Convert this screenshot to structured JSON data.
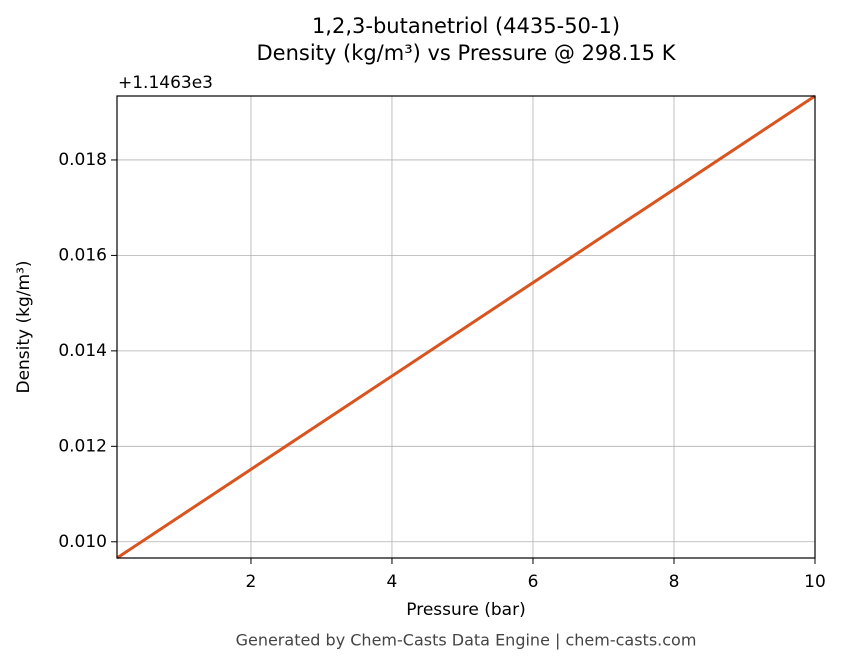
{
  "chart_data": {
    "type": "line",
    "title": "1,2,3-butanetriol (4435-50-1)",
    "subtitle": "Density (kg/m³) vs Pressure @ 298.15 K",
    "x_label": "Pressure (bar)",
    "y_label": "Density (kg/m³)",
    "y_offset_label": "+1.1463e3",
    "footer": "Generated by Chem-Casts Data Engine | chem-casts.com",
    "x": [
      0.1,
      10
    ],
    "series": [
      {
        "name": "Density",
        "color": "#d9541e",
        "values": [
          0.00966,
          0.01934
        ]
      }
    ],
    "xlim": [
      0.1,
      10
    ],
    "ylim": [
      0.00966,
      0.01934
    ],
    "xticks": [
      2,
      4,
      6,
      8,
      10
    ],
    "yticks": [
      {
        "value": 0.01,
        "label": "0.010"
      },
      0.012,
      0.014,
      0.016,
      0.018
    ],
    "grid": true
  }
}
